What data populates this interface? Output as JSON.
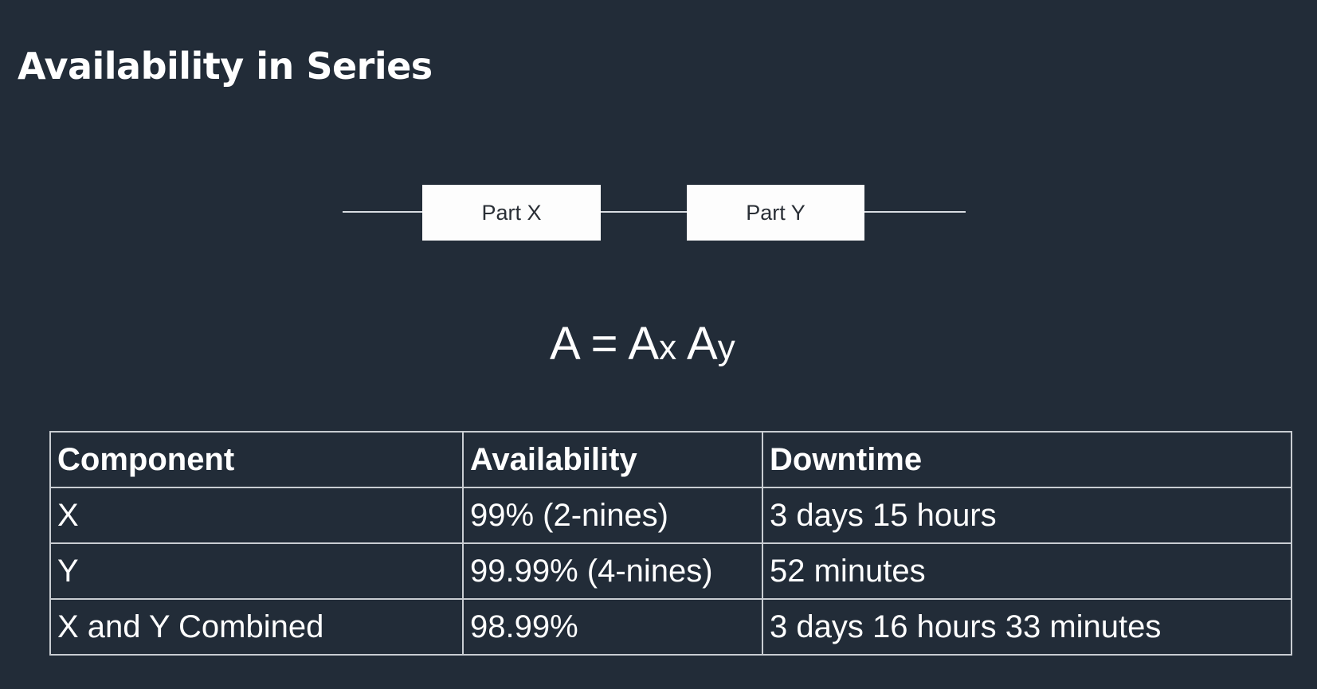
{
  "slide": {
    "title": "Availability in Series"
  },
  "diagram": {
    "blocks": [
      "Part X",
      "Part Y"
    ]
  },
  "formula": {
    "lhs": "A",
    "equals": "=",
    "term1": "A",
    "term1_sub": "x",
    "term2": "A",
    "term2_sub": "y"
  },
  "table": {
    "headers": [
      "Component",
      "Availability",
      "Downtime"
    ],
    "rows": [
      [
        "X",
        "99%  (2-nines)",
        "3 days 15 hours"
      ],
      [
        "Y",
        "99.99%  (4-nines)",
        "52 minutes"
      ],
      [
        "X and Y Combined",
        "98.99%",
        "3 days 16 hours 33 minutes"
      ]
    ]
  },
  "colors": {
    "background": "#222c38",
    "text": "#ffffff",
    "block_fill": "#fdfdfd",
    "block_text": "#2a2f36",
    "line": "#d9dde2",
    "table_border": "#c9cdd2"
  }
}
